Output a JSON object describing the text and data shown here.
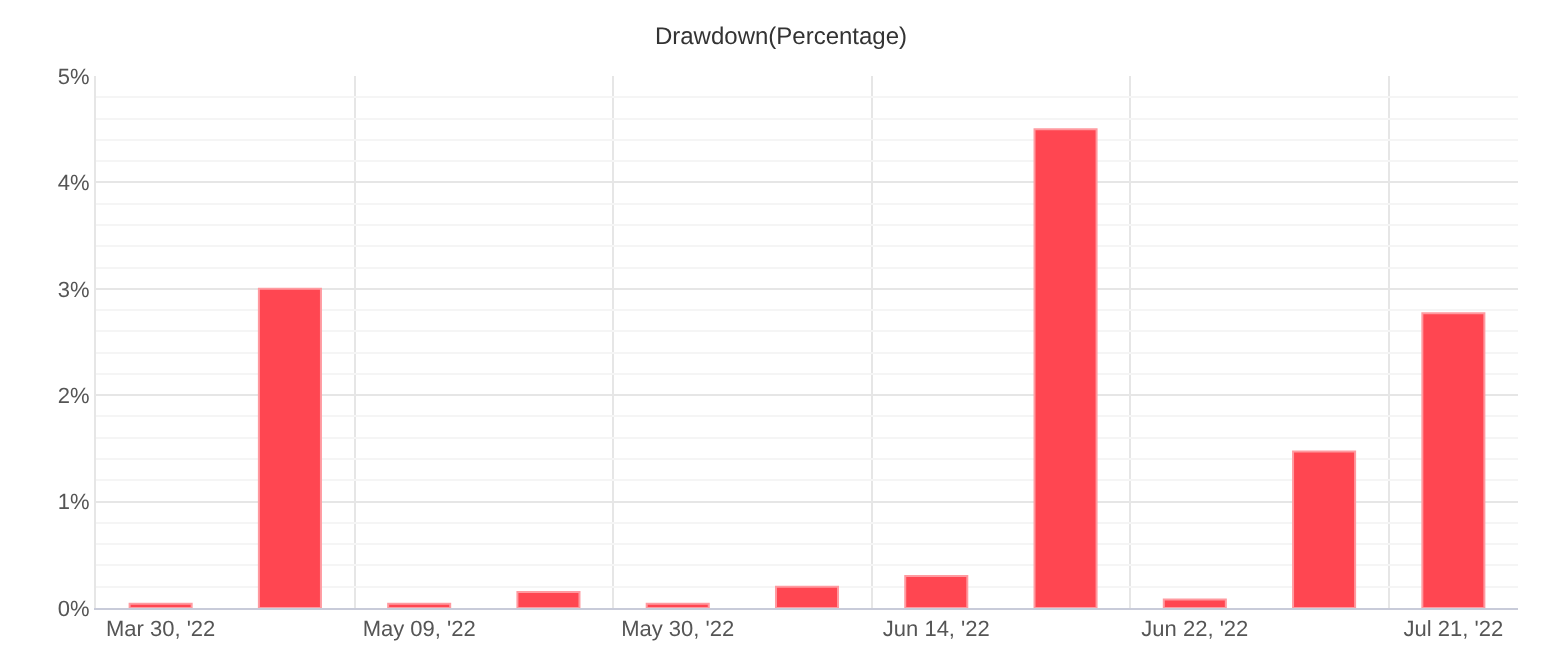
{
  "chart_data": {
    "type": "bar",
    "title": "Drawdown(Percentage)",
    "categories": [
      "Mar 30, '22",
      null,
      "May 09, '22",
      null,
      "May 30, '22",
      null,
      "Jun 14, '22",
      null,
      "Jun 22, '22",
      null,
      "Jul 21, '22"
    ],
    "series": [
      {
        "color": "#ff4651",
        "values": [
          0.04,
          3.0,
          0.04,
          0.15,
          0.04,
          0.2,
          0.3,
          4.5,
          0.08,
          1.47,
          2.77
        ]
      }
    ],
    "ylim": [
      0,
      5
    ],
    "yticks": [
      {
        "value": 0,
        "label": "0%"
      },
      {
        "value": 1,
        "label": "1%"
      },
      {
        "value": 2,
        "label": "2%"
      },
      {
        "value": 3,
        "label": "3%"
      },
      {
        "value": 4,
        "label": "4%"
      },
      {
        "value": 5,
        "label": "5%"
      }
    ],
    "grid": true
  }
}
